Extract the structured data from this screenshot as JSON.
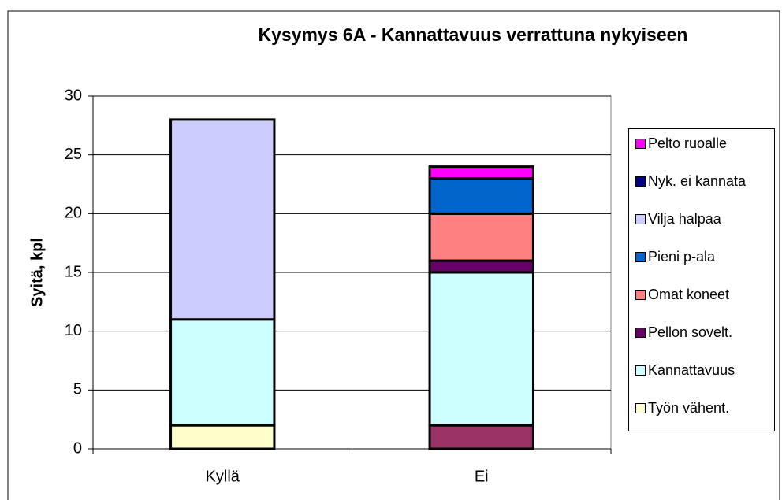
{
  "chart_data": {
    "type": "stacked_bar",
    "title": "Kysymys 6A - Kannattavuus verrattuna nykyiseen",
    "y_label": "Syitä, kpl",
    "categories": [
      "Kyllä",
      "Ei"
    ],
    "series": [
      {
        "color": "#993366",
        "values": [
          0,
          2
        ]
      },
      {
        "name": "Työn vähent.",
        "color": "#ffffcc",
        "values": [
          2,
          0
        ]
      },
      {
        "name": "Kannattavuus",
        "color": "#ccffff",
        "values": [
          9,
          13
        ]
      },
      {
        "name": "Pellon sovelt.",
        "color": "#660066",
        "values": [
          0,
          1
        ]
      },
      {
        "name": "Omat koneet",
        "color": "#ff8080",
        "values": [
          0,
          4
        ]
      },
      {
        "name": "Pieni p-ala",
        "color": "#0066cc",
        "values": [
          0,
          3
        ]
      },
      {
        "name": "Vilja halpaa",
        "color": "#ccccff",
        "values": [
          17,
          0
        ]
      },
      {
        "name": "Nyk. ei kannata",
        "color": "#000080",
        "values": [
          0,
          0
        ]
      },
      {
        "name": "Pelto ruoalle",
        "color": "#ff00ff",
        "values": [
          0,
          1
        ]
      }
    ],
    "ylim": [
      0,
      30
    ],
    "yticks": [
      0,
      5,
      10,
      15,
      20,
      25,
      30
    ],
    "grid": true
  }
}
